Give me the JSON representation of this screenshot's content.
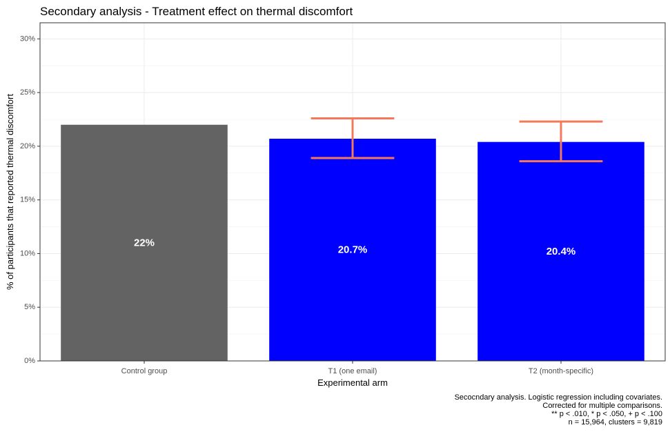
{
  "chart_data": {
    "type": "bar",
    "title": "Secondary analysis - Treatment effect on thermal discomfort",
    "xlabel": "Experimental arm",
    "ylabel": "% of participants that reported thermal discomfort",
    "categories": [
      "Control group",
      "T1 (one email)",
      "T2 (month-specific)"
    ],
    "values": [
      22.0,
      20.7,
      20.4
    ],
    "value_labels": [
      "22%",
      "20.7%",
      "20.4%"
    ],
    "error_bars": [
      null,
      [
        18.9,
        22.6
      ],
      [
        18.6,
        22.3
      ]
    ],
    "ylim": [
      0,
      31.5
    ],
    "yticks": [
      0,
      5,
      10,
      15,
      20,
      25,
      30
    ],
    "ytick_labels": [
      "0%",
      "5%",
      "10%",
      "15%",
      "20%",
      "25%",
      "30%"
    ],
    "bar_colors": [
      "#636363",
      "#0000ff",
      "#0000ff"
    ],
    "error_bar_color": "#f4795b",
    "grid": true,
    "legend": "none",
    "caption_lines": [
      "Secocndary analysis. Logistic regression including covariates.",
      "Corrected for multiple comparisons.",
      "** p < .010, * p < .050, + p < .100",
      "n = 15,964, clusters = 9,819"
    ]
  }
}
